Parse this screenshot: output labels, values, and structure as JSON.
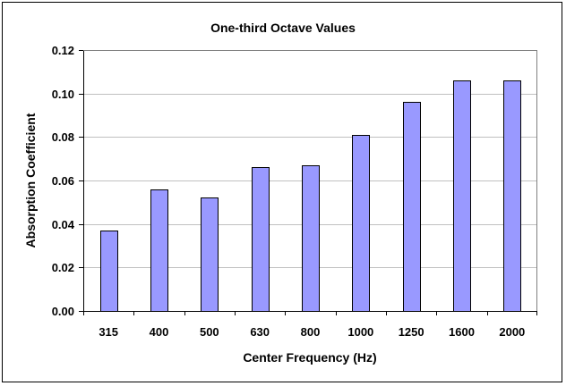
{
  "chart_data": {
    "type": "bar",
    "title": "One-third Octave Values",
    "xlabel": "Center Frequency (Hz)",
    "ylabel": "Absorption Coefficient",
    "categories": [
      "315",
      "400",
      "500",
      "630",
      "800",
      "1000",
      "1250",
      "1600",
      "2000"
    ],
    "values": [
      0.037,
      0.056,
      0.052,
      0.066,
      0.067,
      0.081,
      0.096,
      0.106,
      0.106
    ],
    "ylim": [
      0,
      0.12
    ],
    "yticks": [
      "0.00",
      "0.02",
      "0.04",
      "0.06",
      "0.08",
      "0.10",
      "0.12"
    ],
    "ytick_values": [
      0,
      0.02,
      0.04,
      0.06,
      0.08,
      0.1,
      0.12
    ],
    "grid": true,
    "legend": "none",
    "bar_color": "#9999ff",
    "bar_edge_color": "#000000",
    "grid_color": "#c0c0c0"
  }
}
